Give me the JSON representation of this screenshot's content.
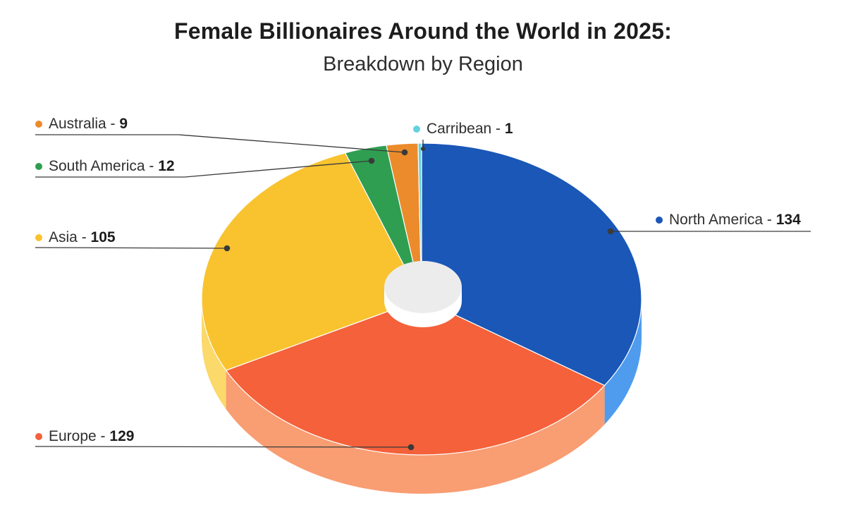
{
  "title": {
    "line1": "Female Billionaires Around the World in 2025:",
    "line2": "Breakdown by Region"
  },
  "labels": {
    "separator": " - "
  },
  "colors": {
    "background": "#ffffff",
    "leader": "#3a3a3a",
    "hole_top": "#ececec",
    "hole_side": "#ffffff",
    "slice_divider": "#ffffff"
  },
  "chart_data": {
    "type": "pie",
    "title": "Female Billionaires Around the World in 2025: Breakdown by Region",
    "direction": "clockwise",
    "start": "top",
    "style": "3d-donut",
    "slices": [
      {
        "name": "North America",
        "value": 134,
        "color": "#1a57b7",
        "side_color": "#4f9cee"
      },
      {
        "name": "Europe",
        "value": 129,
        "color": "#f4613a",
        "side_color": "#f99d72"
      },
      {
        "name": "Asia",
        "value": 105,
        "color": "#f8c32e",
        "side_color": "#fbd96a"
      },
      {
        "name": "South America",
        "value": 12,
        "color": "#2f9e51",
        "side_color": "#6fc48a"
      },
      {
        "name": "Australia",
        "value": 9,
        "color": "#ec8b2c",
        "side_color": "#f4b370"
      },
      {
        "name": "Carribean",
        "value": 1,
        "color": "#63d2de",
        "side_color": "#9fe4ec"
      }
    ]
  }
}
